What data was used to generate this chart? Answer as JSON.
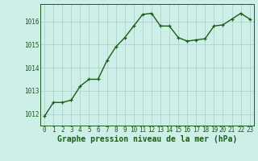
{
  "x": [
    0,
    1,
    2,
    3,
    4,
    5,
    6,
    7,
    8,
    9,
    10,
    11,
    12,
    13,
    14,
    15,
    16,
    17,
    18,
    19,
    20,
    21,
    22,
    23
  ],
  "y": [
    1011.9,
    1012.5,
    1012.5,
    1012.6,
    1013.2,
    1013.5,
    1013.5,
    1014.3,
    1014.9,
    1015.3,
    1015.8,
    1016.3,
    1016.35,
    1015.8,
    1015.8,
    1015.3,
    1015.15,
    1015.2,
    1015.25,
    1015.8,
    1015.85,
    1016.1,
    1016.35,
    1016.1
  ],
  "line_color": "#1a5c1a",
  "marker_color": "#1a5c1a",
  "bg_color": "#ceeee8",
  "grid_color": "#a8cec8",
  "xlabel": "Graphe pression niveau de la mer (hPa)",
  "xlabel_color": "#1a5c1a",
  "tick_color": "#1a5c1a",
  "ylim": [
    1011.5,
    1016.75
  ],
  "yticks": [
    1012,
    1013,
    1014,
    1015,
    1016
  ],
  "xticks": [
    0,
    1,
    2,
    3,
    4,
    5,
    6,
    7,
    8,
    9,
    10,
    11,
    12,
    13,
    14,
    15,
    16,
    17,
    18,
    19,
    20,
    21,
    22,
    23
  ],
  "tick_fontsize": 5.5,
  "xlabel_fontsize": 7.0,
  "line_width": 1.0,
  "marker_size": 3.0
}
